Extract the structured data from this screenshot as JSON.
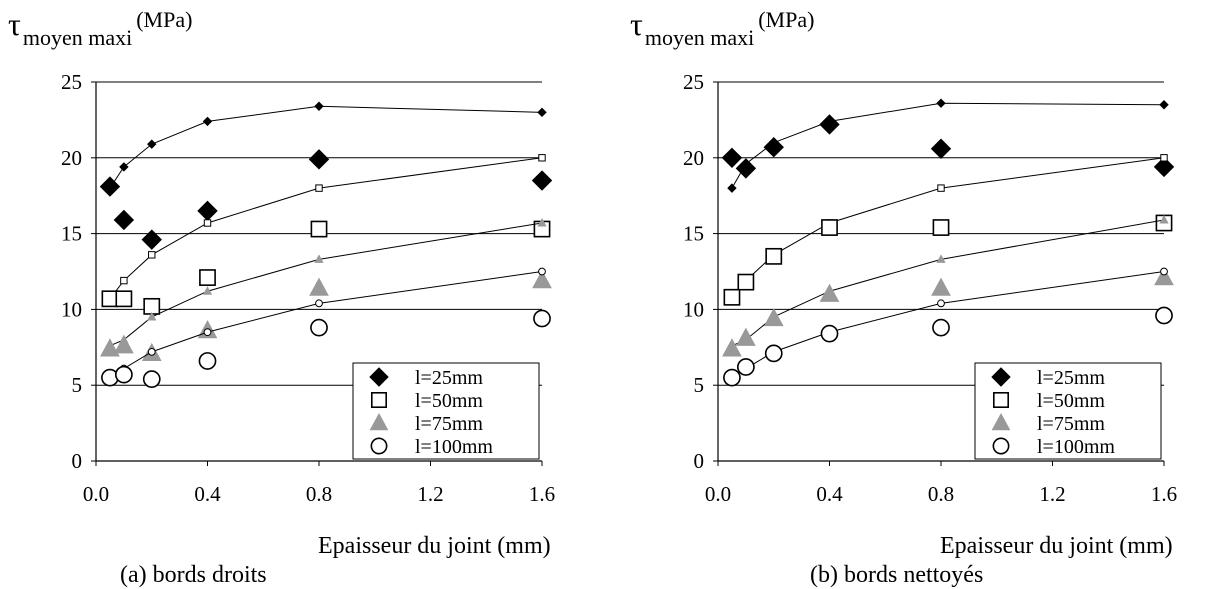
{
  "chart_data": [
    {
      "type": "scatter",
      "ylabel": {
        "symbol": "τ",
        "subscript": "moyen maxi",
        "unit": "(MPa)"
      },
      "xlabel": "Epaisseur du joint (mm)",
      "caption": "(a) bords droits",
      "xlim": [
        0,
        1.6
      ],
      "ylim": [
        0,
        25
      ],
      "xticks": [
        "0.0",
        "0.4",
        "0.8",
        "1.2",
        "1.6"
      ],
      "yticks": [
        "0",
        "5",
        "10",
        "15",
        "20",
        "25"
      ],
      "grid": "horizontal",
      "legend_position": "bottom-right",
      "x": [
        0.05,
        0.1,
        0.2,
        0.4,
        0.8,
        1.6
      ],
      "series": [
        {
          "name": "l=25mm",
          "marker": "diamond",
          "color": "#000000",
          "model": [
            18.0,
            19.4,
            20.9,
            22.4,
            23.4,
            23.0
          ],
          "experimental": [
            18.1,
            15.9,
            14.6,
            16.5,
            19.9,
            18.5
          ]
        },
        {
          "name": "l=50mm",
          "marker": "square",
          "color": "#000000",
          "model": [
            10.7,
            11.9,
            13.6,
            15.7,
            18.0,
            20.0
          ],
          "experimental": [
            10.7,
            10.7,
            10.2,
            12.1,
            15.3,
            15.3
          ]
        },
        {
          "name": "l=75mm",
          "marker": "triangle",
          "color": "#999999",
          "model": [
            7.6,
            8.0,
            9.5,
            11.2,
            13.3,
            15.7
          ],
          "experimental": [
            7.4,
            7.6,
            7.1,
            8.6,
            11.4,
            11.9
          ]
        },
        {
          "name": "l=100mm",
          "marker": "circle",
          "color": "#000000",
          "model": [
            5.5,
            6.1,
            7.2,
            8.5,
            10.4,
            12.5
          ],
          "experimental": [
            5.5,
            5.7,
            5.4,
            6.6,
            8.8,
            9.4
          ]
        }
      ]
    },
    {
      "type": "scatter",
      "ylabel": {
        "symbol": "τ",
        "subscript": "moyen maxi",
        "unit": "(MPa)"
      },
      "xlabel": "Epaisseur du joint (mm)",
      "caption": "(b) bords nettoyés",
      "xlim": [
        0,
        1.6
      ],
      "ylim": [
        0,
        25
      ],
      "xticks": [
        "0.0",
        "0.4",
        "0.8",
        "1.2",
        "1.6"
      ],
      "yticks": [
        "0",
        "5",
        "10",
        "15",
        "20",
        "25"
      ],
      "grid": "horizontal",
      "legend_position": "bottom-right",
      "x": [
        0.05,
        0.1,
        0.2,
        0.4,
        0.8,
        1.6
      ],
      "series": [
        {
          "name": "l=25mm",
          "marker": "diamond",
          "color": "#000000",
          "model": [
            18.0,
            19.6,
            21.0,
            22.4,
            23.6,
            23.5
          ],
          "experimental": [
            20.0,
            19.3,
            20.7,
            22.2,
            20.6,
            19.4
          ]
        },
        {
          "name": "l=50mm",
          "marker": "square",
          "color": "#000000",
          "model": [
            10.7,
            11.9,
            13.6,
            15.7,
            18.0,
            20.0
          ],
          "experimental": [
            10.8,
            11.8,
            13.5,
            15.4,
            15.4,
            15.7
          ]
        },
        {
          "name": "l=75mm",
          "marker": "triangle",
          "color": "#999999",
          "model": [
            7.6,
            8.0,
            9.5,
            11.2,
            13.3,
            15.9
          ],
          "experimental": [
            7.4,
            8.1,
            9.4,
            11.0,
            11.4,
            12.1
          ]
        },
        {
          "name": "l=100mm",
          "marker": "circle",
          "color": "#000000",
          "model": [
            5.5,
            6.1,
            7.2,
            8.5,
            10.4,
            12.5
          ],
          "experimental": [
            5.5,
            6.2,
            7.1,
            8.4,
            8.8,
            9.6
          ]
        }
      ]
    }
  ]
}
